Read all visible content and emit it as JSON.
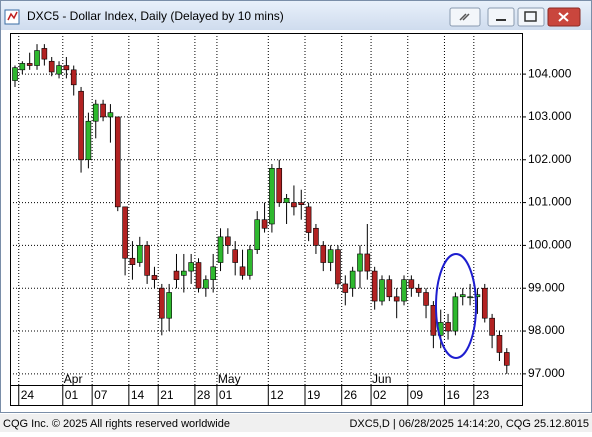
{
  "chart_data": {
    "type": "candlestick",
    "title": "DXC5 - Dollar Index, Daily (Delayed by 10 mins)",
    "categories": [
      null,
      "24",
      null,
      null,
      null,
      null,
      null,
      "01",
      null,
      null,
      null,
      "07",
      null,
      null,
      null,
      null,
      "14",
      null,
      null,
      null,
      "21",
      null,
      null,
      null,
      null,
      "28",
      null,
      null,
      "01",
      null,
      null,
      null,
      null,
      null,
      null,
      "12",
      null,
      null,
      null,
      null,
      "19",
      null,
      null,
      null,
      null,
      "26",
      null,
      null,
      null,
      "02",
      null,
      null,
      null,
      null,
      "09",
      null,
      null,
      null,
      null,
      "16",
      null,
      null,
      null,
      "23",
      null,
      null,
      null,
      null
    ],
    "month_labels": [
      null,
      null,
      null,
      null,
      null,
      null,
      null,
      "Apr",
      null,
      null,
      null,
      null,
      null,
      null,
      null,
      null,
      null,
      null,
      null,
      null,
      null,
      null,
      null,
      null,
      null,
      null,
      null,
      null,
      "May",
      null,
      null,
      null,
      null,
      null,
      null,
      null,
      null,
      null,
      null,
      null,
      null,
      null,
      null,
      null,
      null,
      null,
      null,
      null,
      null,
      "Jun",
      null,
      null,
      null,
      null,
      null,
      null,
      null,
      null,
      null,
      null,
      null,
      null,
      null,
      null,
      null,
      null,
      null,
      null
    ],
    "open": [
      103.85,
      104.1,
      104.25,
      104.2,
      104.6,
      104.3,
      104.0,
      104.2,
      104.1,
      103.6,
      102.0,
      102.9,
      103.3,
      103.0,
      103.0,
      100.9,
      99.7,
      99.6,
      100.0,
      99.3,
      99.0,
      98.3,
      99.4,
      99.3,
      99.4,
      99.6,
      99.0,
      99.2,
      99.6,
      100.2,
      99.9,
      99.5,
      99.3,
      99.9,
      100.6,
      100.5,
      101.8,
      101.0,
      101.0,
      101.0,
      100.9,
      100.4,
      100.0,
      99.6,
      99.9,
      99.1,
      99.0,
      99.4,
      99.8,
      99.4,
      98.7,
      99.2,
      98.8,
      98.7,
      99.2,
      99.0,
      98.9,
      98.6,
      97.9,
      98.2,
      98.0,
      98.8,
      98.8,
      98.8,
      99.0,
      98.3,
      97.9,
      97.5
    ],
    "high": [
      104.2,
      104.3,
      104.5,
      104.7,
      104.7,
      104.4,
      104.3,
      104.4,
      104.2,
      103.7,
      103.1,
      103.4,
      103.4,
      103.3,
      103.0,
      100.9,
      100.1,
      100.2,
      100.1,
      99.5,
      99.1,
      99.1,
      99.8,
      99.8,
      99.8,
      99.7,
      99.3,
      99.8,
      100.4,
      100.4,
      100.1,
      99.9,
      100.0,
      100.8,
      101.0,
      101.9,
      102.0,
      101.2,
      101.4,
      101.3,
      101.0,
      100.5,
      100.1,
      100.0,
      100.0,
      99.3,
      99.5,
      100.0,
      100.5,
      99.5,
      99.3,
      99.3,
      99.0,
      99.3,
      99.3,
      99.1,
      99.0,
      98.7,
      98.5,
      98.4,
      98.9,
      99.0,
      99.1,
      99.0,
      99.1,
      98.4,
      98.0,
      97.6
    ],
    "low": [
      103.7,
      104.0,
      104.1,
      104.1,
      104.2,
      103.95,
      103.9,
      103.9,
      103.5,
      101.7,
      101.8,
      102.5,
      102.9,
      102.4,
      100.8,
      99.3,
      99.2,
      99.5,
      99.1,
      99.0,
      97.9,
      98.0,
      99.0,
      98.9,
      99.1,
      98.9,
      98.8,
      98.9,
      99.4,
      99.8,
      99.3,
      99.2,
      99.2,
      99.8,
      100.3,
      100.3,
      100.9,
      100.5,
      100.7,
      100.6,
      100.1,
      99.8,
      99.4,
      99.4,
      99.0,
      98.6,
      98.8,
      99.0,
      99.2,
      98.5,
      98.6,
      98.7,
      98.3,
      98.6,
      98.8,
      98.8,
      98.3,
      97.6,
      97.6,
      97.8,
      97.9,
      98.6,
      98.6,
      98.4,
      98.2,
      97.6,
      97.3,
      97.0
    ],
    "close": [
      104.15,
      104.25,
      104.2,
      104.55,
      104.35,
      104.05,
      104.2,
      104.1,
      103.75,
      102.0,
      102.9,
      103.3,
      103.0,
      103.1,
      100.9,
      99.7,
      99.55,
      100.0,
      99.3,
      99.2,
      98.3,
      98.9,
      99.2,
      99.4,
      99.6,
      99.0,
      99.2,
      99.5,
      100.2,
      100.0,
      99.6,
      99.3,
      99.9,
      100.6,
      100.4,
      101.8,
      101.0,
      101.1,
      100.9,
      100.95,
      100.3,
      100.0,
      99.6,
      99.9,
      99.1,
      98.9,
      99.4,
      99.8,
      99.4,
      98.7,
      99.2,
      98.8,
      98.7,
      99.2,
      99.0,
      98.9,
      98.6,
      97.9,
      98.2,
      98.0,
      98.8,
      98.85,
      98.8,
      98.85,
      98.3,
      97.9,
      97.5,
      97.2
    ],
    "up_color": "#2eb82e",
    "down_color": "#b22222",
    "ylim": [
      96.74,
      104.96
    ],
    "yticks": [
      {
        "value": 97,
        "label": "97.000"
      },
      {
        "value": 98,
        "label": "98.000"
      },
      {
        "value": 99,
        "label": "99.000"
      },
      {
        "value": 100,
        "label": "100.000"
      },
      {
        "value": 101,
        "label": "101.000"
      },
      {
        "value": 102,
        "label": "102.000"
      },
      {
        "value": 103,
        "label": "103.000"
      },
      {
        "value": 104,
        "label": "104.000"
      }
    ],
    "grid": true
  },
  "footer": {
    "left": "CQG Inc. © 2025 All rights reserved worldwide",
    "right": "DXC5,D | 06/28/2025 14:14:20, CQG 25.12.8015"
  }
}
